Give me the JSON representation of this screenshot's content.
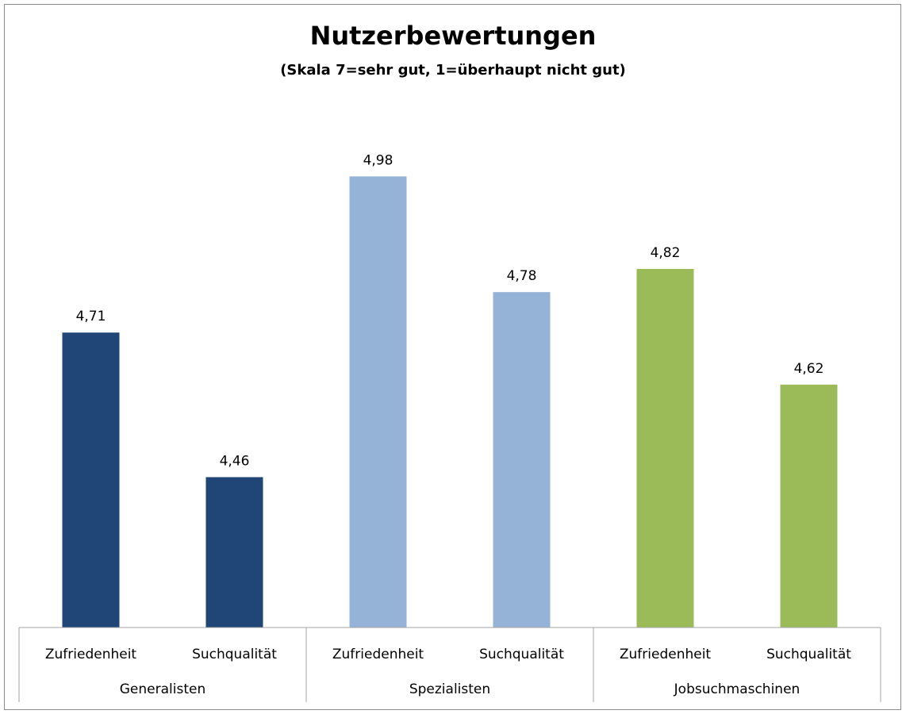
{
  "chart_data": {
    "type": "bar",
    "title": "Nutzerbewertungen",
    "subtitle": "(Skala 7=sehr gut, 1=überhaupt nicht gut)",
    "groups": [
      {
        "name": "Generalisten",
        "color": "#1f4677",
        "categories": [
          "Zufriedenheit",
          "Suchqualität"
        ],
        "values": [
          4.71,
          4.46
        ],
        "labels": [
          "4,71",
          "4,46"
        ]
      },
      {
        "name": "Spezialisten",
        "color": "#95b3d7",
        "categories": [
          "Zufriedenheit",
          "Suchqualität"
        ],
        "values": [
          4.98,
          4.78
        ],
        "labels": [
          "4,98",
          "4,78"
        ]
      },
      {
        "name": "Jobsuchmaschinen",
        "color": "#9bbb59",
        "categories": [
          "Zufriedenheit",
          "Suchqualität"
        ],
        "values": [
          4.82,
          4.62
        ],
        "labels": [
          "4,82",
          "4,62"
        ]
      }
    ],
    "ylim": [
      4.2,
      5.2
    ],
    "grid": false,
    "legend": "none"
  }
}
